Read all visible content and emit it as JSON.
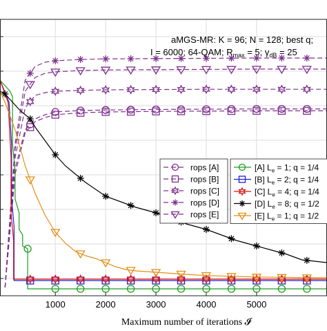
{
  "chart_data": {
    "type": "line",
    "xlabel": "Maximum number of iterations 𝓘",
    "x_ticks": [
      1000,
      2000,
      3000,
      4000,
      5000
    ],
    "xlim": [
      -100,
      6400
    ],
    "ylim": [
      0,
      1
    ],
    "grid": true,
    "annotation_lines": [
      "aMGS-MR: K = 96; N = 128; best q;",
      "I = 6000; 64-QAM; R",
      "max",
      " = 5; γ",
      "dB",
      " = 25"
    ],
    "legend_rops": {
      "placement": "center-left",
      "entries": [
        "rops [A]",
        "rops [B]",
        "rops [C]",
        "rops [D]",
        "rops [E]"
      ]
    },
    "legend_main": {
      "placement": "center-right",
      "entries": [
        {
          "main": "[A] L",
          "sub": "e",
          "rest": " = 1; q = 1/4"
        },
        {
          "main": "[B] L",
          "sub": "e",
          "rest": " = 2; q = 1/4"
        },
        {
          "main": "[C] L",
          "sub": "e",
          "rest": " = 4; q = 1/4"
        },
        {
          "main": "[D] L",
          "sub": "e",
          "rest": " = 8; q = 1/2"
        },
        {
          "main": "[E] L",
          "sub": "e",
          "rest": " = 1; q = 1/2"
        }
      ]
    },
    "series": [
      {
        "key": "ropsA",
        "color": "#7e2f8e",
        "dash": true,
        "marker": "circle",
        "x": [
          0,
          200,
          400,
          600,
          800,
          1000,
          1500,
          2000,
          3000,
          4000,
          5000,
          6400
        ],
        "y": [
          0.03,
          0.46,
          0.6,
          0.64,
          0.655,
          0.665,
          0.67,
          0.672,
          0.674,
          0.675,
          0.676,
          0.676
        ],
        "markers_x": [
          500,
          1000,
          1500,
          2000,
          2500,
          3000,
          3500,
          4000,
          4500,
          5000,
          5500,
          6000
        ]
      },
      {
        "key": "ropsB",
        "color": "#7e2f8e",
        "dash": true,
        "marker": "square",
        "x": [
          0,
          200,
          400,
          600,
          800,
          1000,
          1500,
          2000,
          3000,
          4000,
          5000,
          6400
        ],
        "y": [
          0.03,
          0.44,
          0.59,
          0.63,
          0.645,
          0.655,
          0.662,
          0.665,
          0.667,
          0.668,
          0.669,
          0.669
        ],
        "markers_x": [
          500,
          1000,
          1500,
          2000,
          2500,
          3000,
          3500,
          4000,
          4500,
          5000,
          5500,
          6000
        ]
      },
      {
        "key": "ropsC",
        "color": "#7e2f8e",
        "dash": true,
        "marker": "hexagram",
        "x": [
          0,
          200,
          400,
          600,
          800,
          1000,
          1500,
          2000,
          3000,
          4000,
          5000,
          6400
        ],
        "y": [
          0.03,
          0.5,
          0.68,
          0.725,
          0.735,
          0.74,
          0.743,
          0.745,
          0.746,
          0.747,
          0.747,
          0.747
        ],
        "markers_x": [
          500,
          1000,
          1500,
          2000,
          2500,
          3000,
          3500,
          4000,
          4500,
          5000,
          5500,
          6000
        ]
      },
      {
        "key": "ropsD",
        "color": "#7e2f8e",
        "dash": true,
        "marker": "asterisk",
        "x": [
          0,
          200,
          400,
          600,
          800,
          1000,
          1500,
          2000,
          3000,
          4000,
          5000,
          6400
        ],
        "y": [
          0.03,
          0.55,
          0.78,
          0.83,
          0.845,
          0.85,
          0.855,
          0.857,
          0.858,
          0.859,
          0.86,
          0.86
        ],
        "markers_x": [
          500,
          1000,
          1500,
          2000,
          2500,
          3000,
          3500,
          4000,
          4500,
          5000,
          5500,
          6000
        ]
      },
      {
        "key": "ropsE",
        "color": "#7e2f8e",
        "dash": true,
        "marker": "triangle-down",
        "x": [
          0,
          200,
          400,
          600,
          800,
          1000,
          1500,
          2000,
          3000,
          4000,
          5000,
          6400
        ],
        "y": [
          0.03,
          0.53,
          0.74,
          0.79,
          0.805,
          0.81,
          0.815,
          0.817,
          0.818,
          0.819,
          0.82,
          0.82
        ],
        "markers_x": [
          500,
          1000,
          1500,
          2000,
          2500,
          3000,
          3500,
          4000,
          4500,
          5000,
          5500,
          6000
        ]
      },
      {
        "key": "A",
        "color": "#1a9e1a",
        "dash": false,
        "marker": "circle",
        "x": [
          -100,
          100,
          150,
          150,
          200,
          200,
          280,
          280,
          350,
          350,
          450,
          450,
          6400
        ],
        "y": [
          0.78,
          0.74,
          0.72,
          0.55,
          0.45,
          0.35,
          0.3,
          0.24,
          0.22,
          0.18,
          0.17,
          0.025,
          0.025
        ],
        "markers_x": [
          450,
          1000,
          1500,
          2000,
          2500,
          3000,
          3500,
          4000,
          4500,
          5000,
          5500,
          6000
        ]
      },
      {
        "key": "B",
        "color": "#1f1fd0",
        "dash": false,
        "marker": "square",
        "x": [
          -100,
          80,
          130,
          130,
          180,
          180,
          6400
        ],
        "y": [
          0.78,
          0.7,
          0.55,
          0.35,
          0.25,
          0.055,
          0.055
        ],
        "markers_x": [
          500,
          1000,
          1500,
          2000,
          2500,
          3000,
          3500,
          4000,
          4500,
          5000,
          5500,
          6000
        ]
      },
      {
        "key": "C",
        "color": "#e01010",
        "dash": false,
        "marker": "hexagram",
        "x": [
          -100,
          60,
          120,
          120,
          170,
          170,
          6400
        ],
        "y": [
          0.78,
          0.7,
          0.5,
          0.3,
          0.2,
          0.06,
          0.06
        ],
        "markers_x": [
          500,
          1000,
          1500,
          2000,
          2500,
          3000,
          3500,
          4000,
          4500,
          5000,
          5500,
          6000
        ]
      },
      {
        "key": "D",
        "color": "#000000",
        "dash": false,
        "marker": "asterisk",
        "x": [
          -100,
          0,
          100,
          200,
          300,
          400,
          500,
          600,
          800,
          1000,
          1200,
          1400,
          1600,
          1800,
          2000,
          2300,
          2600,
          3000,
          3300,
          3600,
          4000,
          4300,
          4600,
          5000,
          5300,
          5600,
          5900,
          6400
        ],
        "y": [
          0.74,
          0.73,
          0.71,
          0.69,
          0.67,
          0.655,
          0.64,
          0.61,
          0.56,
          0.51,
          0.47,
          0.44,
          0.41,
          0.385,
          0.36,
          0.34,
          0.32,
          0.3,
          0.28,
          0.26,
          0.24,
          0.22,
          0.2,
          0.18,
          0.165,
          0.15,
          0.13,
          0.12
        ],
        "markers_x": [
          0,
          500,
          1000,
          1500,
          2000,
          2500,
          3000,
          3500,
          4000,
          4500,
          5000,
          5500,
          6000
        ]
      },
      {
        "key": "E",
        "color": "#e38e16",
        "dash": false,
        "marker": "triangle-down",
        "x": [
          -100,
          0,
          200,
          400,
          600,
          800,
          1000,
          1200,
          1400,
          1600,
          1800,
          2000,
          2200,
          2400,
          2600,
          3000,
          3400,
          3800,
          4200,
          4600,
          5000,
          5400,
          5800,
          6400
        ],
        "y": [
          0.74,
          0.7,
          0.6,
          0.47,
          0.37,
          0.29,
          0.23,
          0.19,
          0.16,
          0.145,
          0.135,
          0.12,
          0.105,
          0.095,
          0.09,
          0.085,
          0.08,
          0.075,
          0.072,
          0.07,
          0.068,
          0.067,
          0.066,
          0.065
        ],
        "markers_x": [
          500,
          1000,
          1500,
          2000,
          2500,
          3000,
          3500,
          4000,
          4500,
          5000,
          5500,
          6000
        ]
      }
    ]
  }
}
